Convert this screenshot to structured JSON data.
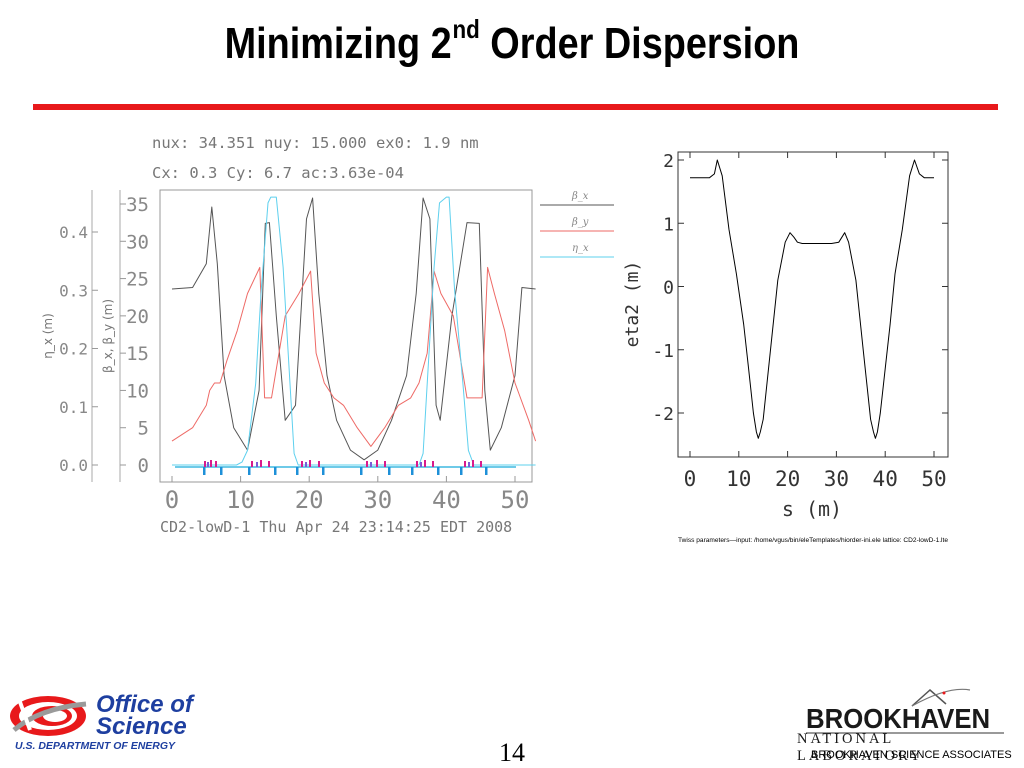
{
  "slide": {
    "title_main": "Minimizing 2",
    "title_sup": "nd",
    "title_rest": " Order Dispersion",
    "slide_number": "14",
    "colors": {
      "rule": "#e8191b",
      "doe_blue": "#1e3fa0"
    }
  },
  "logos": {
    "doe_line1": "Office of",
    "doe_line2": "Science",
    "doe_sub": "U.S. DEPARTMENT OF ENERGY",
    "bnl_line1": "BROOKHAVEN",
    "bnl_line2": "NATIONAL LABORATORY",
    "bnl_line3": "BROOKHAVEN SCIENCE ASSOCIATES"
  },
  "left_plot": {
    "header1": "nux: 34.351  nuy: 15.000  ex0:  1.9  nm",
    "header2": "Cx:      0.3  Cy:      6.7  ac:3.63e-04",
    "footer": "CD2-lowD-1  Thu  Apr  24  23:14:25  EDT  2008",
    "x_ticks": [
      "0",
      "10",
      "20",
      "30",
      "40",
      "50"
    ],
    "y_beta_ticks": [
      "0",
      "5",
      "10",
      "15",
      "20",
      "25",
      "30",
      "35"
    ],
    "y_eta_ticks": [
      "0.0",
      "0.1",
      "0.2",
      "0.3",
      "0.4"
    ],
    "ylabel_beta": "β_x, β_y (m)",
    "ylabel_eta": "η_x (m)"
  },
  "right_plot": {
    "x_ticks": [
      "0",
      "10",
      "20",
      "30",
      "40",
      "50"
    ],
    "y_ticks": [
      "2",
      "1",
      "0",
      "-1",
      "-2"
    ],
    "xlabel": "s (m)",
    "ylabel": "eta2 (m)",
    "caption": "Twiss parameters—input: /home/vgus/bin/eleTemplates/hiorder-ini.ele    lattice: CD2-lowD-1.lte"
  },
  "chart_data": [
    {
      "type": "line",
      "xlim": [
        0,
        53
      ],
      "ylim": [
        0,
        36
      ],
      "y2lim": [
        0,
        0.46
      ],
      "series": [
        {
          "name": "β_x",
          "color": "#555555",
          "axis": "beta",
          "x": [
            0,
            3,
            5,
            5.8,
            6.6,
            7.6,
            9,
            11,
            12.7,
            13.6,
            14.2,
            15.2,
            16.5,
            18,
            19.6,
            20.5,
            21.4,
            22.6,
            24,
            26,
            28,
            30,
            32,
            34.2,
            35.6,
            36.6,
            37.6,
            38.5,
            39.1,
            40.8,
            43,
            44.8,
            45.6,
            46.4,
            48,
            50,
            51,
            53
          ],
          "y": [
            23.6,
            23.8,
            27,
            34.6,
            27,
            12,
            5,
            2,
            10,
            32.4,
            32.5,
            20,
            6,
            8,
            33,
            35.8,
            23,
            12,
            6,
            2,
            0.7,
            2,
            6,
            12,
            23,
            35.8,
            33,
            8,
            6,
            20,
            32.5,
            32.4,
            10,
            2,
            5,
            12,
            23.8,
            23.6
          ]
        },
        {
          "name": "β_y",
          "color": "#ee6a66",
          "axis": "beta",
          "x": [
            0,
            3,
            5,
            5.5,
            6.2,
            7,
            8,
            9.5,
            11,
            12.8,
            13.5,
            14.5,
            16.5,
            18.5,
            20.2,
            21,
            22.2,
            23.6,
            25,
            27,
            29,
            31,
            33,
            34.8,
            36,
            37.2,
            38.2,
            39.2,
            41,
            43,
            45.2,
            46,
            47,
            48.5,
            50,
            52,
            53
          ],
          "y": [
            3.2,
            5,
            8,
            10,
            11,
            11,
            14,
            18,
            23,
            26.5,
            9,
            9,
            20,
            23,
            26,
            15,
            11,
            9,
            8,
            5,
            2.5,
            5,
            8,
            9,
            11,
            15,
            26,
            23,
            20,
            9,
            9,
            26.5,
            23,
            18,
            11,
            6,
            3.2
          ]
        },
        {
          "name": "η_x",
          "color": "#5ed0ee",
          "axis": "eta",
          "x": [
            0,
            9.4,
            10.2,
            11,
            12.2,
            13,
            14,
            14.4,
            15.2,
            16.2,
            17,
            17.8,
            18.4,
            30,
            36,
            36.6,
            37.4,
            38.2,
            39,
            40,
            40.4,
            41.2,
            42.4,
            43.2,
            44,
            53
          ],
          "y": [
            0,
            0,
            0.005,
            0.025,
            0.14,
            0.3,
            0.45,
            0.46,
            0.46,
            0.34,
            0.18,
            0.02,
            0,
            0,
            0,
            0.02,
            0.18,
            0.34,
            0.45,
            0.46,
            0.46,
            0.3,
            0.14,
            0.025,
            0,
            0
          ]
        }
      ]
    },
    {
      "type": "line",
      "xlim": [
        0,
        53
      ],
      "ylim": [
        -2.7,
        2.1
      ],
      "series": [
        {
          "color": "#000000",
          "x": [
            0,
            4,
            5,
            5.6,
            6.6,
            8,
            9.5,
            11,
            12,
            13,
            13.6,
            14,
            14.4,
            15,
            16.5,
            18,
            19.5,
            20.5,
            21.3,
            22,
            23,
            25,
            27,
            29,
            30.5,
            31.7,
            32.5,
            34,
            35.5,
            37,
            37.6,
            38,
            38.4,
            39,
            40,
            41,
            42,
            43.5,
            45,
            46,
            47,
            48,
            49,
            50
          ],
          "y": [
            1.72,
            1.72,
            1.78,
            2.0,
            1.75,
            0.9,
            0.2,
            -0.6,
            -1.3,
            -2.0,
            -2.3,
            -2.4,
            -2.3,
            -2.1,
            -1.0,
            0.1,
            0.7,
            0.85,
            0.78,
            0.7,
            0.68,
            0.68,
            0.68,
            0.68,
            0.7,
            0.85,
            0.7,
            0.1,
            -1.0,
            -2.1,
            -2.3,
            -2.4,
            -2.3,
            -2.0,
            -1.3,
            -0.6,
            0.2,
            0.9,
            1.75,
            2.0,
            1.78,
            1.72,
            1.72,
            1.72
          ]
        }
      ]
    }
  ]
}
